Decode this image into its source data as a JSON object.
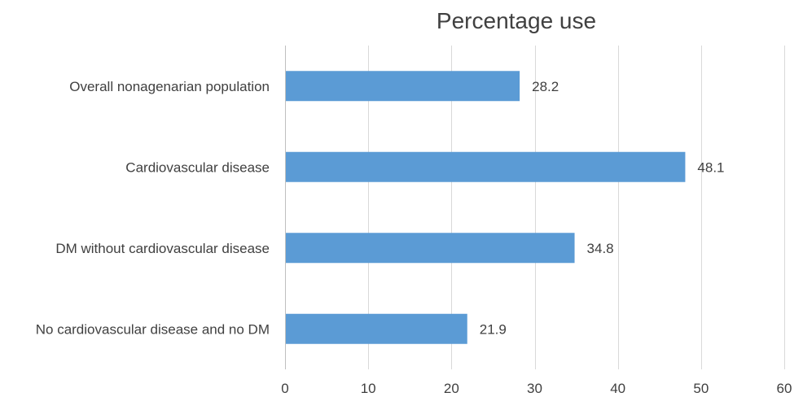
{
  "chart_data": {
    "type": "bar",
    "orientation": "horizontal",
    "title": "Percentage use",
    "xlabel": "",
    "ylabel": "",
    "categories": [
      "Overall nonagenarian population",
      "Cardiovascular disease",
      "DM without cardiovascular disease",
      "No cardiovascular disease and no DM"
    ],
    "values": [
      28.2,
      48.1,
      34.8,
      21.9
    ],
    "data_labels": [
      "28.2",
      "48.1",
      "34.8",
      "21.9"
    ],
    "xlim": [
      0,
      60
    ],
    "xticks": [
      0,
      10,
      20,
      30,
      40,
      50,
      60
    ],
    "xtick_labels": [
      "0",
      "10",
      "20",
      "30",
      "40",
      "50",
      "60"
    ],
    "grid": true,
    "legend": "none",
    "bar_color": "#5b9bd5"
  }
}
